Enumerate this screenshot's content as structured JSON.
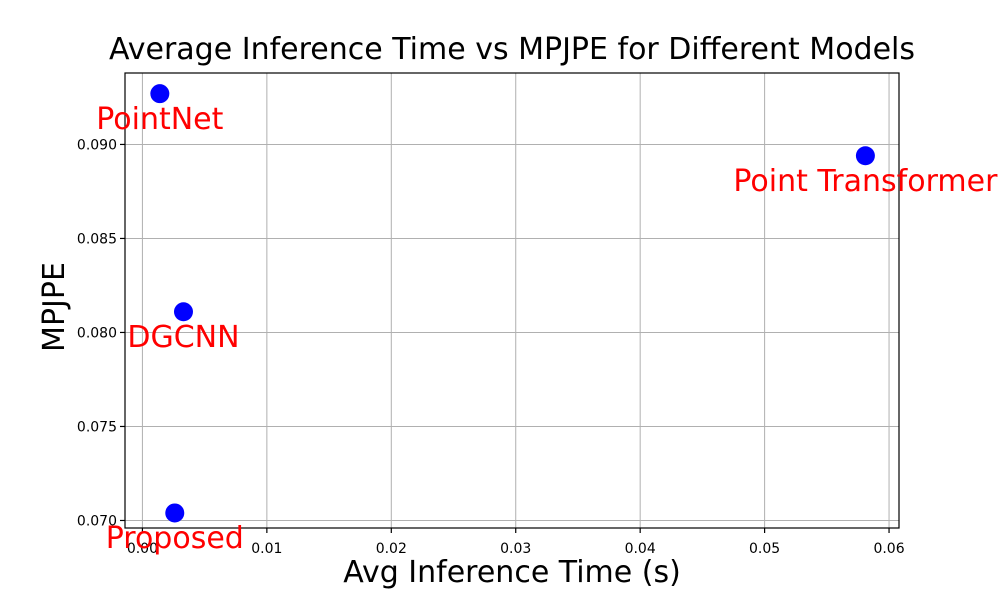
{
  "figure": {
    "background": "#ffffff"
  },
  "chart_data": {
    "type": "scatter",
    "title": "Average Inference Time vs MPJPE for Different Models",
    "xlabel": "Avg Inference Time (s)",
    "ylabel": "MPJPE",
    "points": [
      {
        "label": "PointNet",
        "x": 0.0014,
        "y": 0.0927
      },
      {
        "label": "DGCNN",
        "x": 0.0033,
        "y": 0.0811
      },
      {
        "label": "Proposed",
        "x": 0.0026,
        "y": 0.0704
      },
      {
        "label": "Point Transformer",
        "x": 0.0581,
        "y": 0.0894
      }
    ],
    "xticks": {
      "values": [
        0.0,
        0.01,
        0.02,
        0.03,
        0.04,
        0.05,
        0.06
      ],
      "labels": [
        "0.00",
        "0.01",
        "0.02",
        "0.03",
        "0.04",
        "0.05",
        "0.06"
      ]
    },
    "yticks": {
      "values": [
        0.07,
        0.075,
        0.08,
        0.085,
        0.09
      ],
      "labels": [
        "0.070",
        "0.075",
        "0.080",
        "0.085",
        "0.090"
      ]
    },
    "xlim": [
      -0.0014,
      0.0608
    ],
    "ylim": [
      0.0696,
      0.0938
    ],
    "grid": true,
    "legend": "none",
    "marker_color": "#0000ff",
    "marker_radius_px": 9.5,
    "annotation_color": "#ff0000",
    "grid_color": "#b0b0b0",
    "axis_color": "#000000",
    "text_color": "#000000"
  }
}
